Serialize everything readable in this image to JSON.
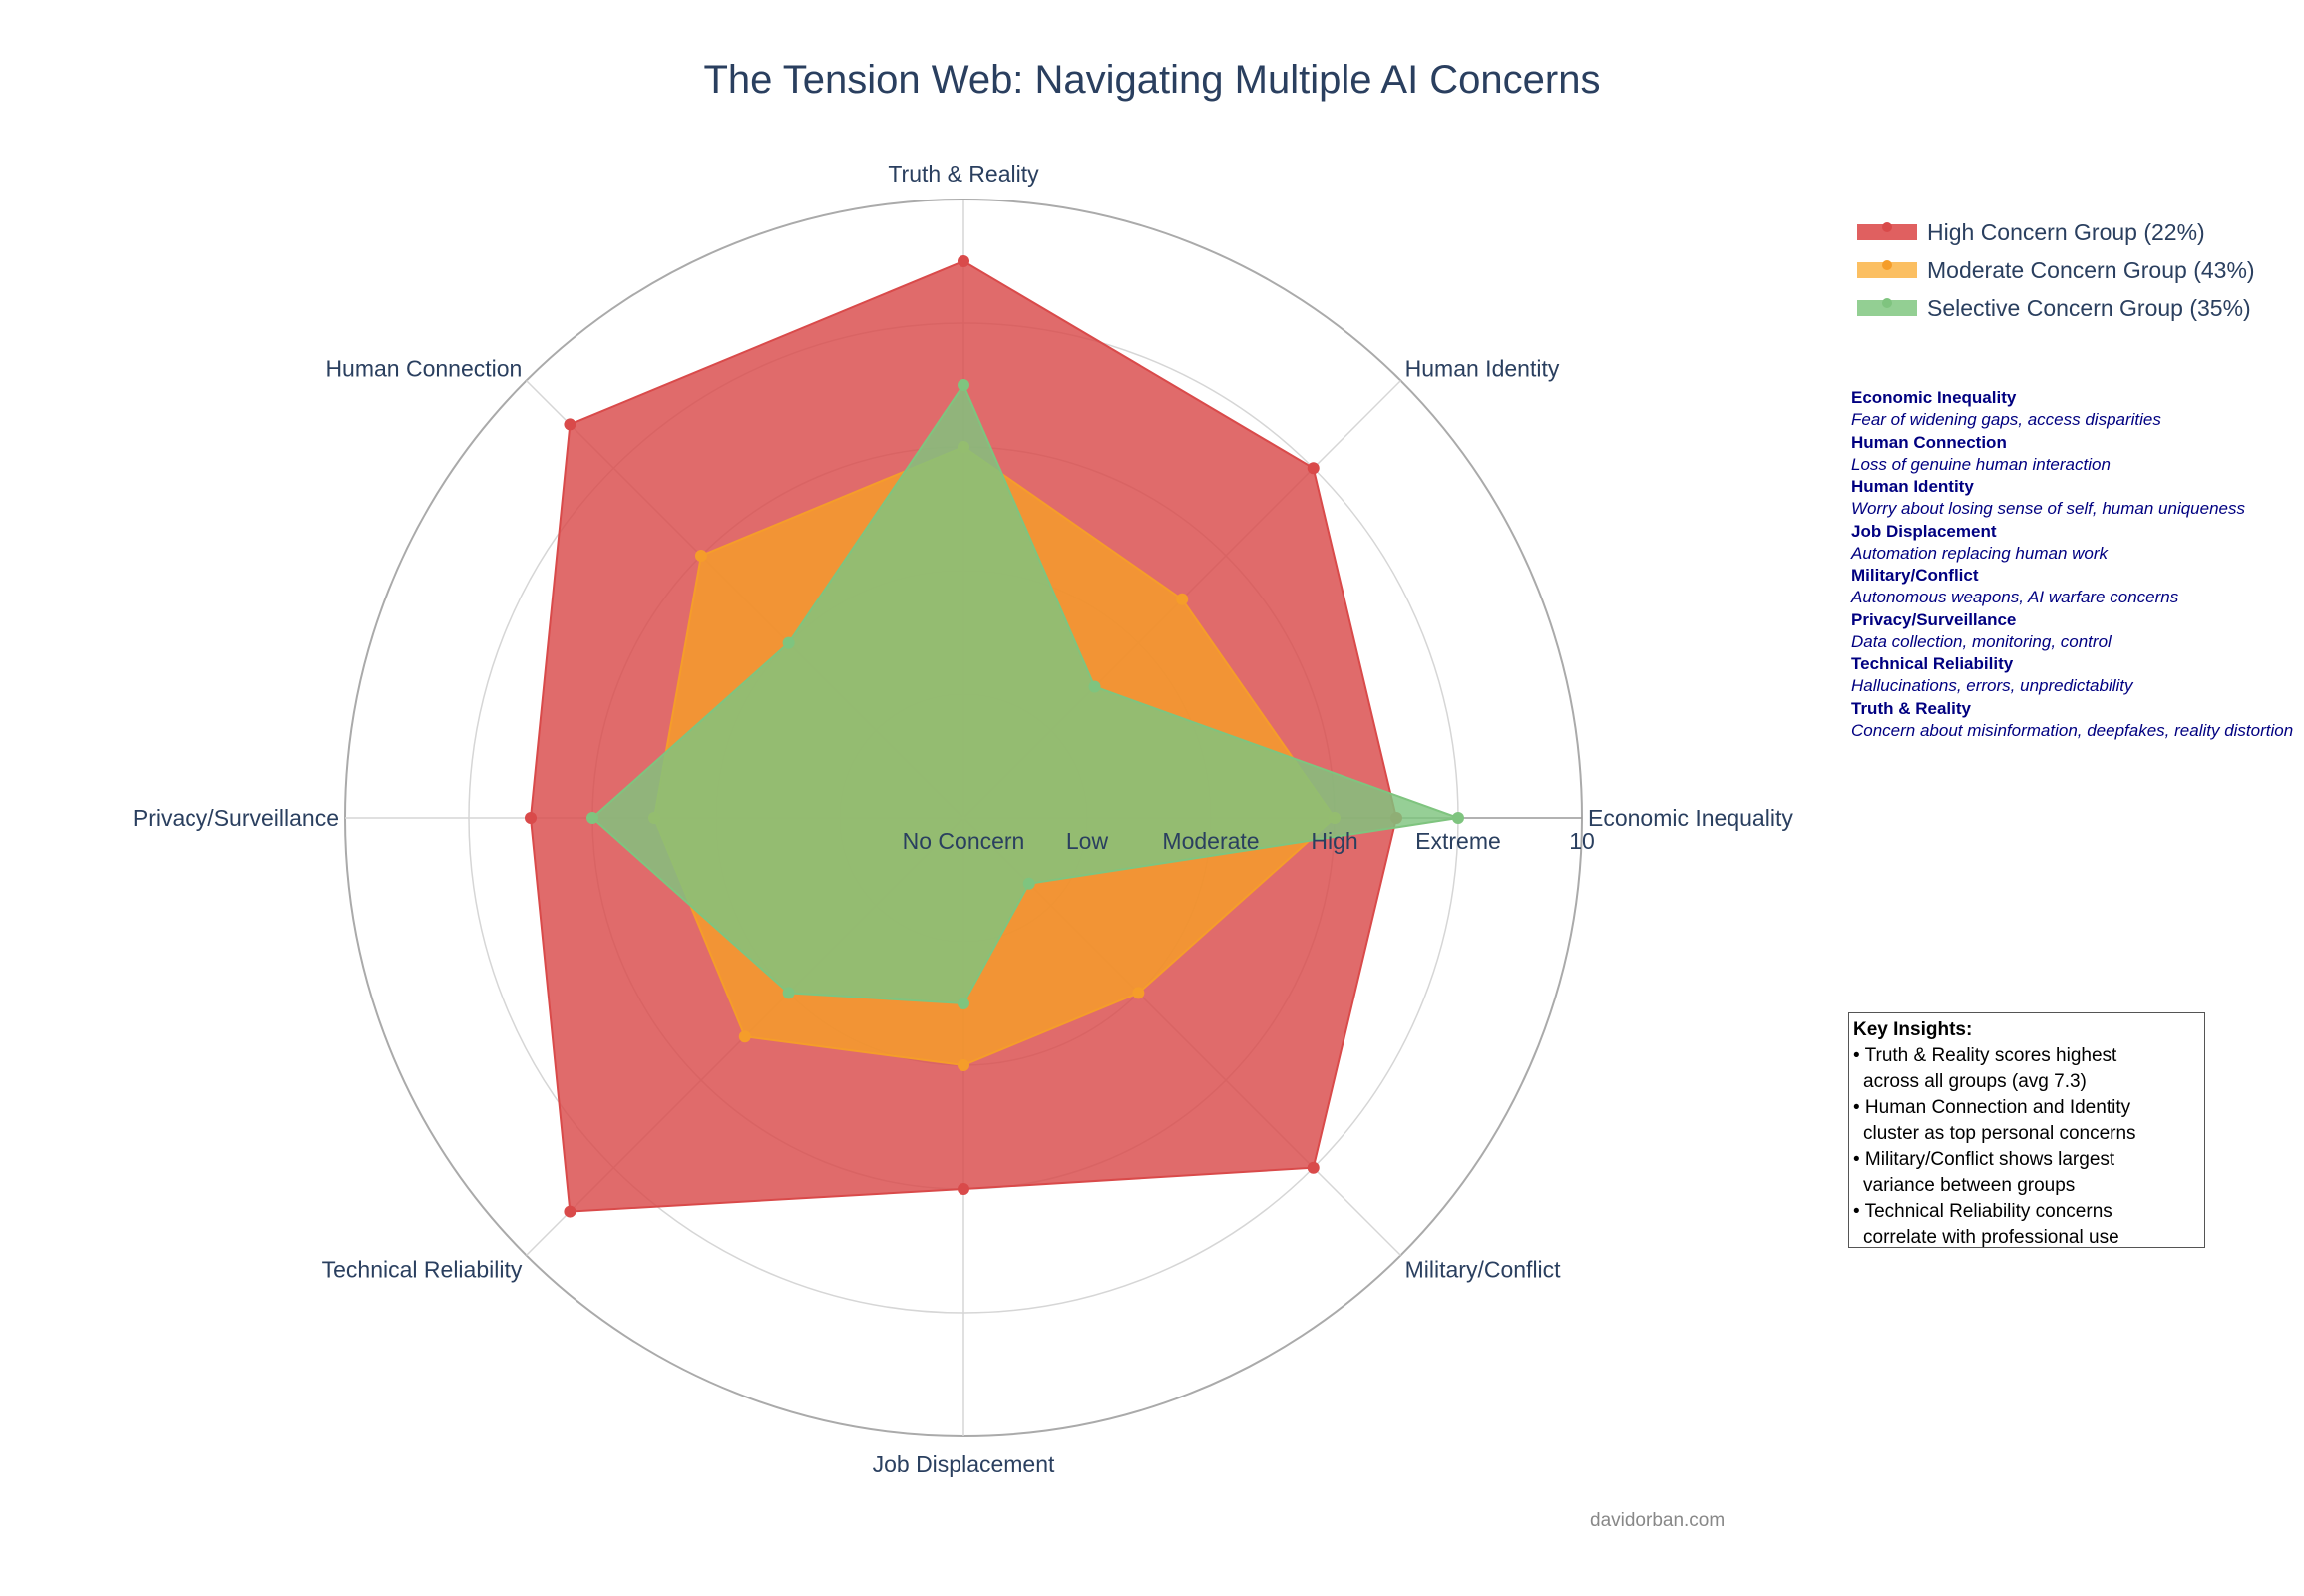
{
  "title": "The Tension Web: Navigating Multiple AI Concerns",
  "chart_data": {
    "type": "radar",
    "title": "The Tension Web: Navigating Multiple AI Concerns",
    "axes": [
      "Economic Inequality",
      "Human Identity",
      "Truth & Reality",
      "Human Connection",
      "Privacy/Surveillance",
      "Technical Reliability",
      "Job Displacement",
      "Military/Conflict"
    ],
    "radial_range": [
      0,
      10
    ],
    "radial_tick_labels": [
      "No Concern",
      "Low",
      "Moderate",
      "High",
      "Extreme",
      "10"
    ],
    "radial_tick_values": [
      0,
      2,
      4,
      6,
      8,
      10
    ],
    "grid": true,
    "legend_position": "top-right",
    "series": [
      {
        "name": "High Concern Group (22%)",
        "color": "#d94a4a",
        "values": [
          7.0,
          8.0,
          9.0,
          9.0,
          7.0,
          9.0,
          6.0,
          8.0
        ]
      },
      {
        "name": "Moderate Concern Group (43%)",
        "color": "#f59d2a",
        "values": [
          6.0,
          5.0,
          6.0,
          6.0,
          5.0,
          5.0,
          4.0,
          4.0
        ]
      },
      {
        "name": "Selective Concern Group (35%)",
        "color": "#7fc47f",
        "values": [
          8.0,
          3.0,
          7.0,
          4.0,
          6.0,
          4.0,
          3.0,
          1.5
        ]
      }
    ]
  },
  "definitions": [
    {
      "name": "Economic Inequality",
      "desc": "Fear of widening gaps, access disparities"
    },
    {
      "name": "Human Connection",
      "desc": "Loss of genuine human interaction"
    },
    {
      "name": "Human Identity",
      "desc": "Worry about losing sense of self, human uniqueness"
    },
    {
      "name": "Job Displacement",
      "desc": "Automation replacing human work"
    },
    {
      "name": "Military/Conflict",
      "desc": "Autonomous weapons, AI warfare concerns"
    },
    {
      "name": "Privacy/Surveillance",
      "desc": "Data collection, monitoring, control"
    },
    {
      "name": "Technical Reliability",
      "desc": "Hallucinations, errors, unpredictability"
    },
    {
      "name": "Truth & Reality",
      "desc": "Concern about misinformation, deepfakes, reality distortion"
    }
  ],
  "insights": {
    "heading": "Key Insights:",
    "lines": [
      "• Truth & Reality scores highest",
      "  across all groups (avg 7.3)",
      "• Human Connection and Identity",
      "  cluster as top personal concerns",
      "• Military/Conflict shows largest",
      "  variance between groups",
      "• Technical Reliability concerns",
      "  correlate with professional use"
    ]
  },
  "credit": "davidorban.com"
}
